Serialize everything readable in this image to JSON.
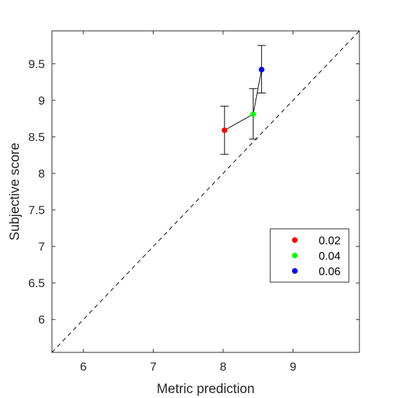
{
  "chart_data": {
    "type": "scatter",
    "title": "",
    "xlabel": "Metric prediction",
    "ylabel": "Subjective score",
    "xlim": [
      5.55,
      9.95
    ],
    "ylim": [
      5.55,
      9.95
    ],
    "xticks": [
      6,
      7,
      8,
      9
    ],
    "yticks": [
      6,
      6.5,
      7,
      7.5,
      8,
      8.5,
      9,
      9.5
    ],
    "xtick_labels": [
      "6",
      "7",
      "8",
      "9"
    ],
    "ytick_labels": [
      "6",
      "6.5",
      "7",
      "7.5",
      "8",
      "8.5",
      "9",
      "9.5"
    ],
    "grid": false,
    "reference_line": "dashed diagonal y = x",
    "connecting_line": true,
    "legend_position": "lower-right",
    "points": [
      {
        "name": "0.02",
        "x": 8.02,
        "y": 8.59,
        "err_low": 8.26,
        "err_high": 8.92,
        "color": "#ff0000"
      },
      {
        "name": "0.04",
        "x": 8.43,
        "y": 8.81,
        "err_low": 8.47,
        "err_high": 9.16,
        "color": "#00ff00"
      },
      {
        "name": "0.06",
        "x": 8.55,
        "y": 9.42,
        "err_low": 9.1,
        "err_high": 9.75,
        "color": "#0000ff"
      }
    ]
  }
}
